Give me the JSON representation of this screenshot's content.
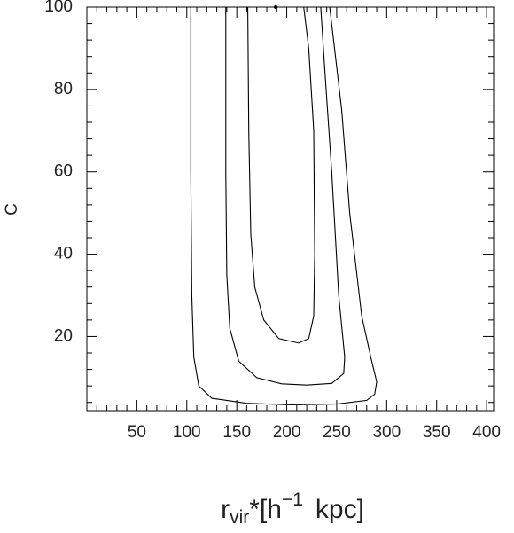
{
  "chart_data": {
    "type": "contour",
    "x_label": {
      "base": "r",
      "sub": "vir",
      "mid": "*[h",
      "sup": "−1",
      "end": "kpc]"
    },
    "y_label": "C",
    "xlim": [
      0,
      407
    ],
    "ylim": [
      2,
      100
    ],
    "xticks": [
      50,
      100,
      150,
      200,
      250,
      300,
      350,
      400
    ],
    "yticks": [
      20,
      40,
      60,
      80,
      100
    ],
    "xminorticks": [
      10,
      20,
      30,
      40,
      60,
      70,
      80,
      90,
      110,
      120,
      130,
      140,
      160,
      170,
      180,
      190,
      210,
      220,
      230,
      240,
      260,
      270,
      280,
      290,
      310,
      320,
      330,
      340,
      360,
      370,
      380,
      390
    ],
    "yminorticks": [
      4,
      8,
      12,
      16,
      24,
      28,
      32,
      36,
      44,
      48,
      52,
      56,
      64,
      68,
      72,
      76,
      84,
      88,
      92,
      96
    ],
    "color": "#000000",
    "series": [
      {
        "x": [
          104,
          104,
          105,
          107,
          112,
          125,
          160,
          205,
          250,
          280,
          288,
          290,
          285,
          275,
          263,
          255,
          243
        ],
        "values": [
          100,
          60,
          30,
          15,
          8,
          5,
          3.8,
          3.4,
          3.6,
          4.5,
          6,
          9,
          14,
          25,
          50,
          75,
          100
        ]
      },
      {
        "x": [
          139,
          139,
          140,
          143,
          152,
          170,
          195,
          220,
          245,
          257,
          258,
          252,
          245,
          238,
          234
        ],
        "values": [
          100,
          60,
          35,
          22,
          14,
          10,
          8.5,
          8.2,
          8.6,
          11,
          15,
          30,
          60,
          85,
          100
        ]
      },
      {
        "x": [
          161,
          162,
          164,
          168,
          177,
          192,
          212,
          222,
          227,
          228,
          227,
          222,
          217
        ],
        "values": [
          100,
          70,
          45,
          32,
          24,
          19.5,
          18.4,
          19.5,
          25,
          40,
          70,
          90,
          100
        ]
      }
    ],
    "markers": {
      "x": [
        189
      ],
      "values": [
        100
      ]
    }
  }
}
